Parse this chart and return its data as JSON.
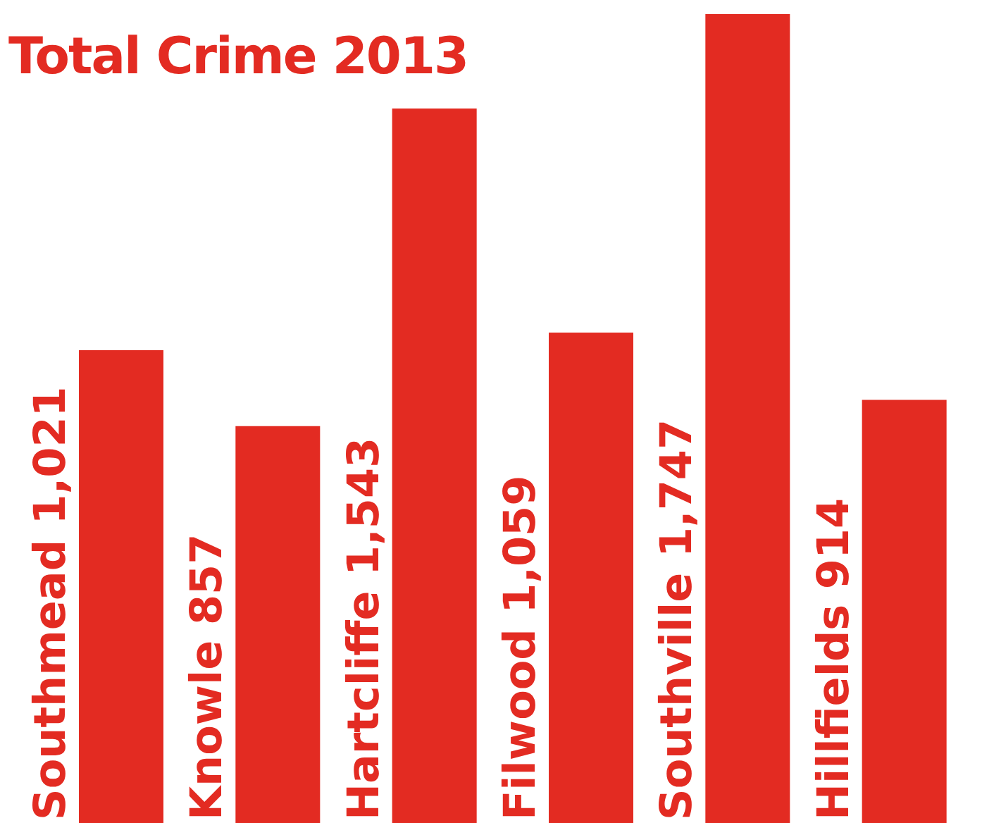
{
  "chart_data": {
    "type": "bar",
    "title": "Total Crime 2013",
    "categories": [
      "Southmead",
      "Knowle",
      "Hartcliffe",
      "Filwood",
      "Southville",
      "Hillfields"
    ],
    "values": [
      1021,
      857,
      1543,
      1059,
      1747,
      914
    ],
    "value_labels": [
      "1,021",
      "857",
      "1,543",
      "1,059",
      "1,747",
      "914"
    ],
    "color": "#e32b22"
  }
}
